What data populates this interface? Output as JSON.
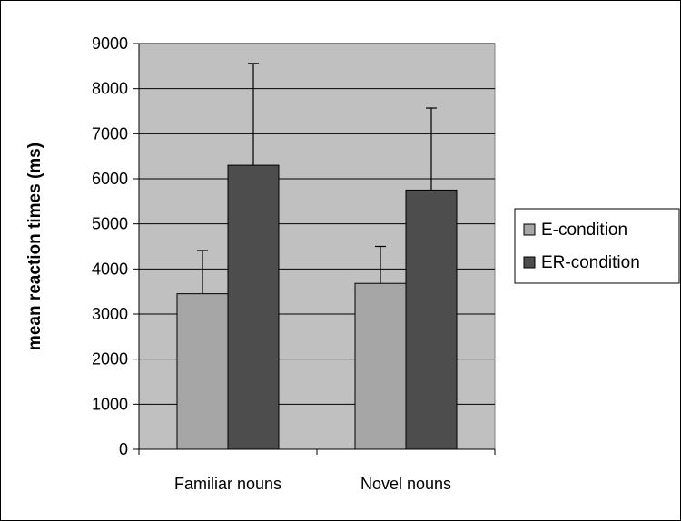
{
  "chart_data": {
    "type": "bar",
    "ylabel": "mean reaction times (ms)",
    "xlabel": "",
    "title": "",
    "categories": [
      "Familiar nouns",
      "Novel nouns"
    ],
    "ylim": [
      0,
      9000
    ],
    "yticks": [
      0,
      1000,
      2000,
      3000,
      4000,
      5000,
      6000,
      7000,
      8000,
      9000
    ],
    "grid": true,
    "legend_position": "right",
    "error_bars": "upper",
    "series": [
      {
        "name": "E-condition",
        "values": [
          3450,
          3680
        ],
        "errors": [
          960,
          820
        ],
        "color": "#a6a6a6"
      },
      {
        "name": "ER-condition",
        "values": [
          6300,
          5750
        ],
        "errors": [
          2260,
          1820
        ],
        "color": "#4d4d4d"
      }
    ],
    "plot_background": "#c0c0c0"
  }
}
